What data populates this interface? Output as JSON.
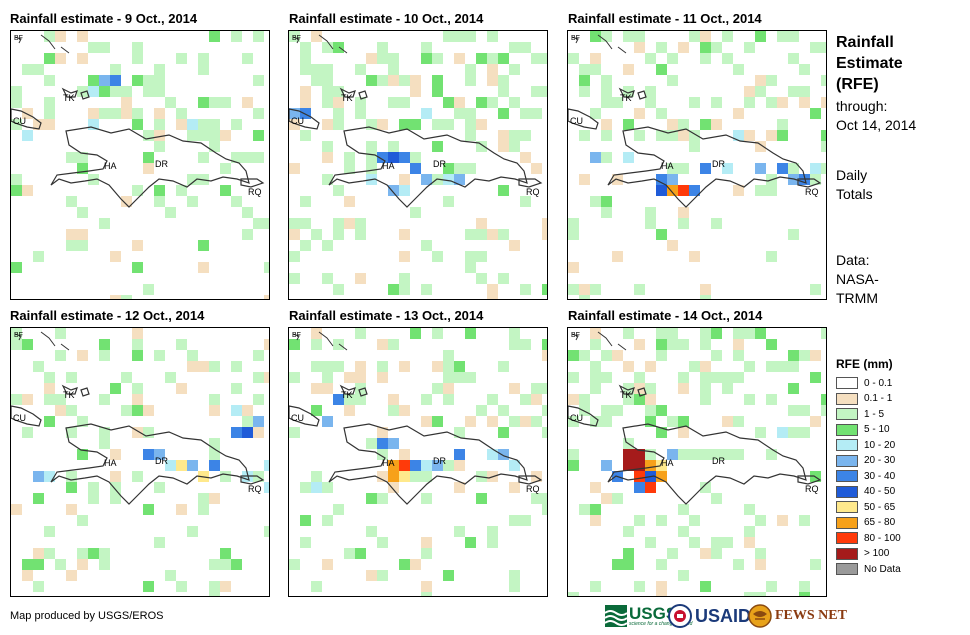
{
  "panels": [
    {
      "title": "Rainfall estimate - 9 Oct., 2014"
    },
    {
      "title": "Rainfall estimate - 10 Oct., 2014"
    },
    {
      "title": "Rainfall estimate - 11 Oct., 2014"
    },
    {
      "title": "Rainfall estimate - 12 Oct., 2014"
    },
    {
      "title": "Rainfall estimate - 13 Oct., 2014"
    },
    {
      "title": "Rainfall estimate - 14 Oct., 2014"
    }
  ],
  "map_labels": {
    "bf": "BF",
    "tk": "TK",
    "cu": "CU",
    "ha": "HA",
    "dr": "DR",
    "rq": "RQ"
  },
  "side": {
    "title_line1": "Rainfall",
    "title_line2": "Estimate",
    "title_line3": "(RFE)",
    "through_line1": "through:",
    "through_line2": "Oct 14, 2014",
    "totals_line1": "Daily",
    "totals_line2": "Totals",
    "data_line1": "Data:",
    "data_line2": "NASA-",
    "data_line3": "TRMM"
  },
  "legend": {
    "title": "RFE (mm)",
    "items": [
      {
        "label": "0 - 0.1",
        "color": "#ffffff"
      },
      {
        "label": "0.1 - 1",
        "color": "#f5dfc0"
      },
      {
        "label": "1 - 5",
        "color": "#c3f5c3"
      },
      {
        "label": "5 - 10",
        "color": "#72e272"
      },
      {
        "label": "10 - 20",
        "color": "#b4ecf5"
      },
      {
        "label": "20 - 30",
        "color": "#7ab5ee"
      },
      {
        "label": "30 - 40",
        "color": "#3c84e6"
      },
      {
        "label": "40 - 50",
        "color": "#1f5bd8"
      },
      {
        "label": "50 - 65",
        "color": "#ffe98c"
      },
      {
        "label": "65 - 80",
        "color": "#f7a11a"
      },
      {
        "label": "80 - 100",
        "color": "#ff3a0a"
      },
      {
        "label": "> 100",
        "color": "#a51b1b"
      },
      {
        "label": "No Data",
        "color": "#9a9a9a"
      }
    ]
  },
  "credit": "Map produced by USGS/EROS",
  "logos": {
    "usgs": "USGS",
    "usaid": "USAID",
    "fews": "FEWS NET",
    "usgs_tag": "science for a changing world"
  }
}
